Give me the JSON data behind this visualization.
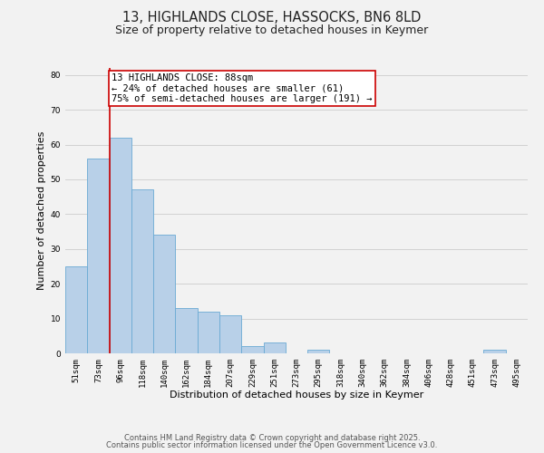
{
  "title": "13, HIGHLANDS CLOSE, HASSOCKS, BN6 8LD",
  "subtitle": "Size of property relative to detached houses in Keymer",
  "xlabel": "Distribution of detached houses by size in Keymer",
  "ylabel": "Number of detached properties",
  "bar_labels": [
    "51sqm",
    "73sqm",
    "96sqm",
    "118sqm",
    "140sqm",
    "162sqm",
    "184sqm",
    "207sqm",
    "229sqm",
    "251sqm",
    "273sqm",
    "295sqm",
    "318sqm",
    "340sqm",
    "362sqm",
    "384sqm",
    "406sqm",
    "428sqm",
    "451sqm",
    "473sqm",
    "495sqm"
  ],
  "bar_heights": [
    25,
    56,
    62,
    47,
    34,
    13,
    12,
    11,
    2,
    3,
    0,
    1,
    0,
    0,
    0,
    0,
    0,
    0,
    0,
    1,
    0
  ],
  "bar_color": "#b8d0e8",
  "bar_edge_color": "#6aaad4",
  "red_line_color": "#cc0000",
  "annotation_line1": "13 HIGHLANDS CLOSE: 88sqm",
  "annotation_line2": "← 24% of detached houses are smaller (61)",
  "annotation_line3": "75% of semi-detached houses are larger (191) →",
  "annotation_box_color": "#ffffff",
  "annotation_box_edge": "#cc0000",
  "ylim": [
    0,
    82
  ],
  "yticks": [
    0,
    10,
    20,
    30,
    40,
    50,
    60,
    70,
    80
  ],
  "grid_color": "#cccccc",
  "bg_color": "#f2f2f2",
  "footer1": "Contains HM Land Registry data © Crown copyright and database right 2025.",
  "footer2": "Contains public sector information licensed under the Open Government Licence v3.0.",
  "title_fontsize": 10.5,
  "subtitle_fontsize": 9,
  "xlabel_fontsize": 8,
  "ylabel_fontsize": 8,
  "tick_fontsize": 6.5,
  "annotation_fontsize": 7.5,
  "footer_fontsize": 6
}
